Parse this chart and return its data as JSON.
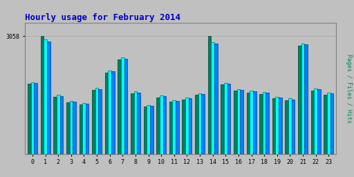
{
  "title": "Hourly usage for February 2014",
  "hours": [
    0,
    1,
    2,
    3,
    4,
    5,
    6,
    7,
    8,
    9,
    10,
    11,
    12,
    13,
    14,
    15,
    16,
    17,
    18,
    19,
    20,
    21,
    22,
    23
  ],
  "pages": [
    1820,
    3058,
    1490,
    1340,
    1290,
    1660,
    2120,
    2450,
    1570,
    1230,
    1470,
    1360,
    1420,
    1530,
    3058,
    1800,
    1640,
    1600,
    1560,
    1440,
    1390,
    2820,
    1650,
    1540
  ],
  "files": [
    1870,
    2980,
    1530,
    1380,
    1330,
    1710,
    2170,
    2500,
    1620,
    1270,
    1520,
    1400,
    1470,
    1580,
    2900,
    1850,
    1690,
    1650,
    1610,
    1490,
    1440,
    2870,
    1700,
    1590
  ],
  "hits": [
    1840,
    2920,
    1510,
    1360,
    1310,
    1690,
    2150,
    2480,
    1600,
    1250,
    1500,
    1380,
    1450,
    1560,
    2860,
    1830,
    1670,
    1630,
    1590,
    1470,
    1420,
    2850,
    1680,
    1570
  ],
  "y_tick_value": 3058,
  "y_tick_label": "3058",
  "y_max": 3400,
  "bar_width": 0.25,
  "pages_color": "#008060",
  "files_color": "#00FFFF",
  "hits_color": "#0080FF",
  "bg_color": "#C0C0C0",
  "title_color": "#0000CC",
  "grid_color": "#AAAAAA",
  "ylabel_text": "Pages / Files / Hits",
  "ylabel_color": "#008060"
}
